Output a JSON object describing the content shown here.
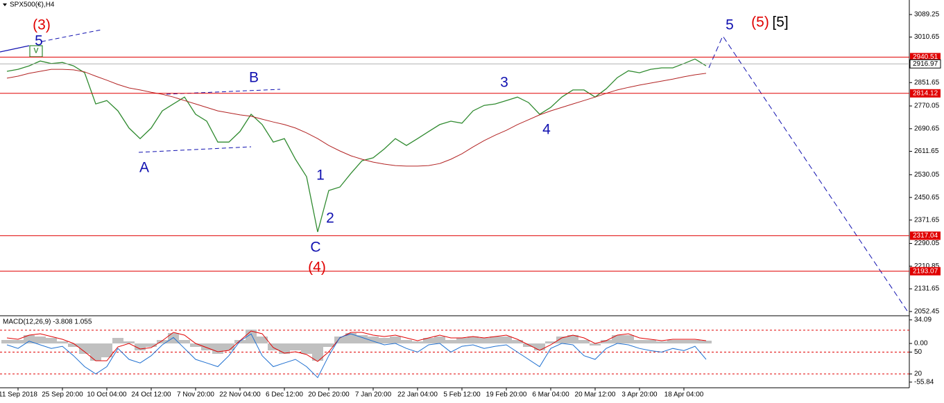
{
  "chart_data": [
    {
      "type": "line",
      "title": "SPX500(€),H4",
      "categories": [
        null,
        "11 Sep 2018",
        null,
        null,
        null,
        "25 Sep 20:00",
        null,
        null,
        null,
        "10 Oct 04:00",
        null,
        null,
        null,
        "24 Oct 12:00",
        null,
        null,
        null,
        "7 Nov 20:00",
        null,
        null,
        null,
        "22 Nov 04:00",
        null,
        null,
        null,
        "6 Dec 12:00",
        null,
        null,
        null,
        "20 Dec 20:00",
        null,
        null,
        null,
        "7 Jan 20:00",
        null,
        null,
        null,
        "22 Jan 04:00",
        null,
        null,
        null,
        "5 Feb 12:00",
        null,
        null,
        null,
        "19 Feb 20:00",
        null,
        null,
        null,
        "6 Mar 04:00",
        null,
        null,
        null,
        "20 Mar 12:00",
        null,
        null,
        null,
        "3 Apr 20:00",
        null,
        null,
        null,
        "18 Apr 04:00",
        null,
        null
      ],
      "series": [
        {
          "color": "#2f8a2f",
          "values": [
            2891,
            2898,
            2910,
            2927,
            2918,
            2922,
            2910,
            2886,
            2777,
            2789,
            2753,
            2693,
            2656,
            2693,
            2753,
            2777,
            2801,
            2741,
            2717,
            2644,
            2644,
            2681,
            2741,
            2705,
            2644,
            2656,
            2584,
            2523,
            2330,
            2475,
            2487,
            2535,
            2579,
            2589,
            2620,
            2656,
            2632,
            2656,
            2681,
            2705,
            2717,
            2710,
            2753,
            2772,
            2777,
            2789,
            2801,
            2782,
            2741,
            2765,
            2801,
            2826,
            2826,
            2801,
            2830,
            2869,
            2893,
            2886,
            2898,
            2903,
            2903,
            2918,
            2934,
            2910
          ]
        },
        {
          "color": "#b22222",
          "values": [
            2867,
            2874,
            2884,
            2891,
            2898,
            2898,
            2896,
            2889,
            2874,
            2860,
            2845,
            2833,
            2826,
            2818,
            2811,
            2801,
            2789,
            2777,
            2765,
            2753,
            2746,
            2739,
            2734,
            2724,
            2714,
            2705,
            2693,
            2676,
            2656,
            2632,
            2613,
            2596,
            2584,
            2574,
            2567,
            2562,
            2560,
            2560,
            2562,
            2569,
            2584,
            2603,
            2627,
            2649,
            2668,
            2685,
            2705,
            2722,
            2739,
            2753,
            2765,
            2777,
            2789,
            2801,
            2814,
            2826,
            2835,
            2843,
            2850,
            2857,
            2864,
            2872,
            2879,
            2884
          ]
        }
      ],
      "ylim": [
        2040,
        3140
      ],
      "yticks": [
        3089.25,
        3010.65,
        2851.65,
        2770.05,
        2690.65,
        2611.65,
        2530.05,
        2450.65,
        2371.65,
        2290.05,
        2210.85,
        2131.65,
        2052.45
      ],
      "levels": [
        2940.51,
        2814.12,
        2317.04,
        2193.07
      ],
      "level_color": "#e00000",
      "current_price": 2916.97,
      "annotations": [
        {
          "text": "(3)",
          "color": "#e00000"
        },
        {
          "text": "5",
          "color": "#1010b0"
        },
        {
          "text": "v",
          "color": "#2f8a2f"
        },
        {
          "text": "B",
          "color": "#1010b0"
        },
        {
          "text": "A",
          "color": "#1010b0"
        },
        {
          "text": "1",
          "color": "#1010b0"
        },
        {
          "text": "2",
          "color": "#1010b0"
        },
        {
          "text": "C",
          "color": "#1010b0"
        },
        {
          "text": "(4)",
          "color": "#e00000"
        },
        {
          "text": "3",
          "color": "#1010b0"
        },
        {
          "text": "4",
          "color": "#1010b0"
        },
        {
          "text": "5",
          "color": "#1010b0"
        },
        {
          "text": "(5)",
          "color": "#e00000"
        },
        {
          "text": "[5]",
          "color": "#000000"
        }
      ]
    },
    {
      "type": "macd",
      "title": "MACD(12,26,9) -3.808 1.055",
      "ylim": [
        -64,
        38
      ],
      "yticks": [
        34.09,
        {
          "value": 0,
          "label": "0.00"
        },
        -55.84
      ],
      "y2lim": [
        1,
        98
      ],
      "y2ticks": [
        50,
        20
      ],
      "levels": [
        80,
        50,
        20
      ],
      "level_color": "#e00000",
      "series": [
        {
          "style": "bar",
          "color": "#c0c0c0",
          "values": [
            5,
            5,
            12,
            10,
            8,
            3,
            -5,
            -15,
            -25,
            -20,
            8,
            3,
            -10,
            -5,
            5,
            15,
            5,
            -5,
            -10,
            -15,
            -10,
            5,
            20,
            10,
            -10,
            -15,
            -10,
            -15,
            -25,
            -5,
            10,
            15,
            12,
            10,
            8,
            10,
            5,
            3,
            8,
            10,
            5,
            8,
            10,
            8,
            10,
            10,
            5,
            -5,
            -10,
            3,
            10,
            12,
            5,
            -3,
            5,
            12,
            12,
            5,
            5,
            3,
            5,
            5,
            5,
            4
          ]
        },
        {
          "color": "#e00000",
          "values": [
            8,
            6,
            12,
            14,
            10,
            6,
            0,
            -12,
            -25,
            -25,
            -5,
            0,
            -8,
            -6,
            4,
            16,
            12,
            0,
            -6,
            -12,
            -10,
            4,
            18,
            14,
            -6,
            -14,
            -12,
            -16,
            -26,
            -12,
            8,
            16,
            16,
            12,
            10,
            12,
            8,
            4,
            8,
            12,
            8,
            8,
            10,
            8,
            10,
            12,
            6,
            -2,
            -10,
            -2,
            8,
            12,
            8,
            0,
            4,
            12,
            14,
            8,
            6,
            4,
            6,
            6,
            6,
            4
          ]
        },
        {
          "color": "#1e6fd0",
          "axis": "y2",
          "values": [
            60,
            55,
            65,
            60,
            55,
            58,
            45,
            30,
            20,
            30,
            55,
            40,
            35,
            45,
            60,
            70,
            55,
            40,
            35,
            30,
            45,
            65,
            75,
            45,
            30,
            35,
            40,
            30,
            15,
            45,
            70,
            75,
            70,
            65,
            60,
            62,
            55,
            50,
            60,
            62,
            50,
            58,
            60,
            55,
            58,
            60,
            50,
            40,
            30,
            55,
            62,
            60,
            45,
            40,
            55,
            62,
            60,
            55,
            52,
            50,
            55,
            52,
            58,
            40
          ]
        }
      ]
    }
  ]
}
